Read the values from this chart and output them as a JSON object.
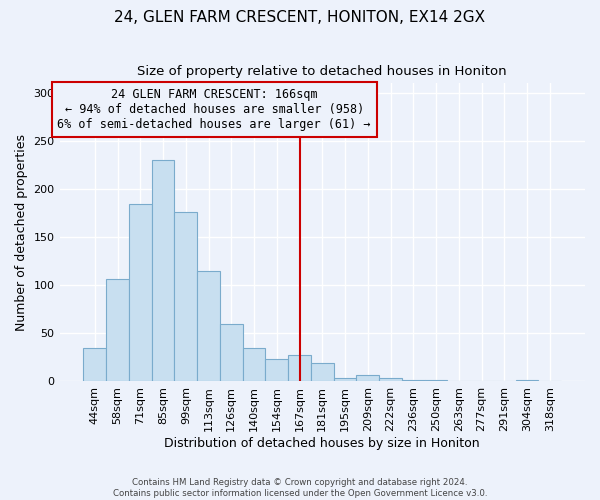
{
  "title": "24, GLEN FARM CRESCENT, HONITON, EX14 2GX",
  "subtitle": "Size of property relative to detached houses in Honiton",
  "xlabel": "Distribution of detached houses by size in Honiton",
  "ylabel": "Number of detached properties",
  "bar_labels": [
    "44sqm",
    "58sqm",
    "71sqm",
    "85sqm",
    "99sqm",
    "113sqm",
    "126sqm",
    "140sqm",
    "154sqm",
    "167sqm",
    "181sqm",
    "195sqm",
    "209sqm",
    "222sqm",
    "236sqm",
    "250sqm",
    "263sqm",
    "277sqm",
    "291sqm",
    "304sqm",
    "318sqm"
  ],
  "bar_values": [
    35,
    107,
    185,
    230,
    176,
    115,
    60,
    35,
    23,
    28,
    19,
    4,
    7,
    4,
    2,
    1,
    0,
    0,
    0,
    2,
    0
  ],
  "bar_color": "#c8dff0",
  "bar_edge_color": "#7aabcc",
  "vline_x_index": 9,
  "vline_color": "#cc0000",
  "annotation_title": "24 GLEN FARM CRESCENT: 166sqm",
  "annotation_line1": "← 94% of detached houses are smaller (958)",
  "annotation_line2": "6% of semi-detached houses are larger (61) →",
  "annotation_box_color": "#cc0000",
  "ylim": [
    0,
    310
  ],
  "yticks": [
    0,
    50,
    100,
    150,
    200,
    250,
    300
  ],
  "footer1": "Contains HM Land Registry data © Crown copyright and database right 2024.",
  "footer2": "Contains public sector information licensed under the Open Government Licence v3.0.",
  "bg_color": "#edf2fb",
  "grid_color": "#ffffff",
  "title_fontsize": 11,
  "subtitle_fontsize": 9.5,
  "axis_label_fontsize": 9,
  "tick_fontsize": 8
}
